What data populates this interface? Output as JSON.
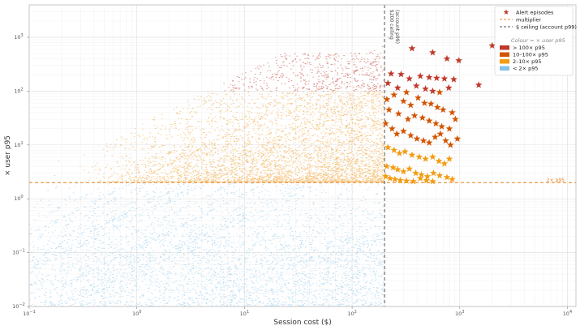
{
  "chart_data": {
    "type": "scatter",
    "title": "",
    "xlabel": "Session cost ($)",
    "ylabel": "× user p95",
    "xscale": "log",
    "yscale": "log",
    "xlim": [
      0.1,
      12000
    ],
    "ylim": [
      0.01,
      4000
    ],
    "grid": true,
    "x_ticks": [
      {
        "value": 0.1,
        "base": "10",
        "exp": "−1"
      },
      {
        "value": 1,
        "base": "10",
        "exp": "0"
      },
      {
        "value": 10,
        "base": "10",
        "exp": "1"
      },
      {
        "value": 100,
        "base": "10",
        "exp": "2"
      },
      {
        "value": 1000,
        "base": "10",
        "exp": "3"
      },
      {
        "value": 10000,
        "base": "10",
        "exp": "4"
      }
    ],
    "y_ticks": [
      {
        "value": 0.01,
        "base": "10",
        "exp": "−2"
      },
      {
        "value": 0.1,
        "base": "10",
        "exp": "−1"
      },
      {
        "value": 1,
        "base": "10",
        "exp": "0"
      },
      {
        "value": 10,
        "base": "10",
        "exp": "1"
      },
      {
        "value": 100,
        "base": "10",
        "exp": "2"
      },
      {
        "value": 1000,
        "base": "10",
        "exp": "3"
      }
    ],
    "reference_lines": {
      "multiplier": {
        "y": 2,
        "label": "2× p95",
        "color": "#e8892b"
      },
      "ceiling": {
        "x": 200,
        "label_line1": "$200 ceiling",
        "label_line2": "(account p99)",
        "color": "#555555"
      }
    },
    "legend": {
      "position": "top-right",
      "entries": [
        {
          "label": "Alert episodes",
          "marker": "star",
          "color": "#c0392b"
        },
        {
          "label": "multiplier",
          "marker": "dashed-line",
          "color": "#e8892b"
        },
        {
          "label": "$ ceiling (account p99)",
          "marker": "dashed-line",
          "color": "#555555"
        }
      ],
      "color_title": "Colour = × user p95",
      "color_entries": [
        {
          "label": "> 100× p95",
          "color": "#c0392b"
        },
        {
          "label": "10–100× p95",
          "color": "#d35400"
        },
        {
          "label": "2–10× p95",
          "color": "#f39c12"
        },
        {
          "label": "< 2× p95",
          "color": "#85c1e9"
        }
      ]
    },
    "series": [
      {
        "name": "Alert episodes",
        "marker": "star",
        "points": [
          [
            2000,
            700
          ],
          [
            360,
            620
          ],
          [
            560,
            520
          ],
          [
            760,
            400
          ],
          [
            980,
            370
          ],
          [
            1500,
            130
          ],
          [
            230,
            210
          ],
          [
            285,
            205
          ],
          [
            340,
            170
          ],
          [
            430,
            190
          ],
          [
            520,
            180
          ],
          [
            610,
            175
          ],
          [
            720,
            170
          ],
          [
            880,
            165
          ],
          [
            215,
            140
          ],
          [
            265,
            115
          ],
          [
            320,
            95
          ],
          [
            395,
            125
          ],
          [
            480,
            110
          ],
          [
            560,
            100
          ],
          [
            650,
            95
          ],
          [
            790,
            115
          ],
          [
            210,
            70
          ],
          [
            245,
            85
          ],
          [
            300,
            65
          ],
          [
            350,
            55
          ],
          [
            410,
            75
          ],
          [
            470,
            60
          ],
          [
            540,
            58
          ],
          [
            620,
            50
          ],
          [
            700,
            45
          ],
          [
            850,
            40
          ],
          [
            220,
            45
          ],
          [
            270,
            38
          ],
          [
            330,
            30
          ],
          [
            380,
            35
          ],
          [
            450,
            32
          ],
          [
            520,
            28
          ],
          [
            600,
            25
          ],
          [
            680,
            22
          ],
          [
            800,
            20
          ],
          [
            910,
            30
          ],
          [
            205,
            25
          ],
          [
            235,
            20
          ],
          [
            260,
            16
          ],
          [
            300,
            18
          ],
          [
            350,
            15
          ],
          [
            400,
            13
          ],
          [
            460,
            12
          ],
          [
            520,
            11
          ],
          [
            590,
            14
          ],
          [
            660,
            16
          ],
          [
            740,
            12
          ],
          [
            820,
            10
          ],
          [
            950,
            13
          ],
          [
            215,
            9
          ],
          [
            245,
            8
          ],
          [
            275,
            7
          ],
          [
            310,
            7.5
          ],
          [
            360,
            6.5
          ],
          [
            420,
            6
          ],
          [
            480,
            5.5
          ],
          [
            560,
            6
          ],
          [
            640,
            5
          ],
          [
            720,
            4.5
          ],
          [
            800,
            5.5
          ],
          [
            210,
            4
          ],
          [
            240,
            3.8
          ],
          [
            265,
            3.5
          ],
          [
            300,
            3.2
          ],
          [
            340,
            3.6
          ],
          [
            390,
            3
          ],
          [
            440,
            2.8
          ],
          [
            500,
            2.6
          ],
          [
            570,
            3
          ],
          [
            650,
            2.7
          ],
          [
            760,
            2.5
          ],
          [
            205,
            2.6
          ],
          [
            225,
            2.4
          ],
          [
            250,
            2.3
          ],
          [
            280,
            2.2
          ],
          [
            320,
            2.15
          ],
          [
            370,
            2.1
          ],
          [
            430,
            2.4
          ],
          [
            490,
            2.2
          ],
          [
            560,
            2.1
          ],
          [
            850,
            2.3
          ]
        ]
      }
    ]
  }
}
